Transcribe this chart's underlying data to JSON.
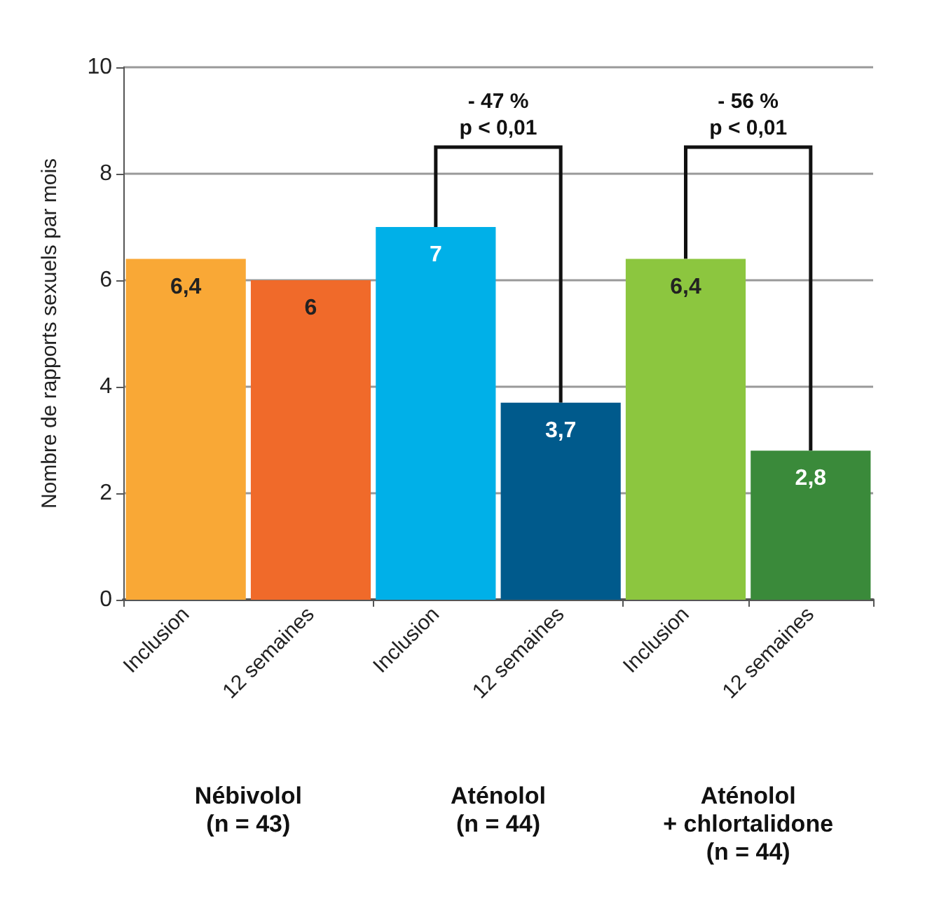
{
  "chart_data": {
    "type": "bar",
    "ylabel": "Nombre de rapports sexuels par mois",
    "categories": [
      "Inclusion",
      "12 semaines",
      "Inclusion",
      "12 semaines",
      "Inclusion",
      "12 semaines"
    ],
    "values": [
      6.4,
      6,
      7,
      3.7,
      6.4,
      2.8
    ],
    "colors": [
      "#f9a836",
      "#f06a2a",
      "#00b0e8",
      "#005a8c",
      "#8cc63f",
      "#3a8a3a"
    ],
    "value_labels": [
      "6,4",
      "6",
      "7",
      "3,7",
      "6,4",
      "2,8"
    ],
    "ylim": [
      0,
      10
    ],
    "yticks": [
      0,
      2,
      4,
      6,
      8,
      10
    ],
    "grid": "y",
    "annotations": [
      "Nébivolol\n(n = 43)",
      "Aténolol\n(n = 44)",
      "Aténolol\n+ chlortalidone\n(n = 44)",
      "- 47 %\np < 0,01",
      "- 56 %\np < 0,01"
    ]
  }
}
